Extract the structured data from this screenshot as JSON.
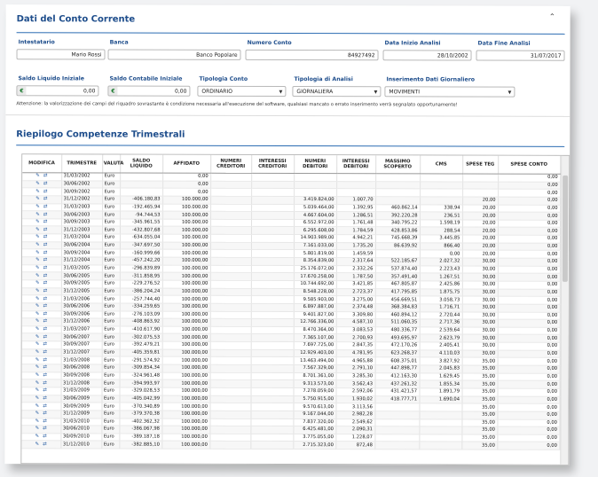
{
  "section1": {
    "title": "Dati del Conto Corrente",
    "collapse_icon": "chevron-up-icon",
    "fields": {
      "intestatario": {
        "label": "Intestatario",
        "value": "Mario Rossi"
      },
      "banca": {
        "label": "Banca",
        "value": "Banco Popolare"
      },
      "numero_conto": {
        "label": "Numero Conto",
        "value": "84927492"
      },
      "data_inizio": {
        "label": "Data Inizio Analisi",
        "value": "28/10/2002"
      },
      "data_fine": {
        "label": "Data Fine Analisi",
        "value": "31/07/2017"
      },
      "saldo_liquido": {
        "label": "Saldo Liquido Iniziale",
        "value": "0,00",
        "prefix": "€"
      },
      "saldo_contabile": {
        "label": "Saldo Contabile Iniziale",
        "value": "0,00",
        "prefix": "€"
      },
      "tipologia_conto": {
        "label": "Tipologia Conto",
        "value": "ORDINARIO"
      },
      "tipologia_analisi": {
        "label": "Tipologia di Analisi",
        "value": "GIORNALIERA"
      },
      "inserimento": {
        "label": "Inserimento Dati Giornaliero",
        "value": "MOVIMENTI"
      }
    },
    "note": "Attenzione: la valorizzazione dei campi del riquadro sovrastante è condizione necessaria all'esecuzione del software, qualsiasi mancato o errato inserimento verrà segnalato opportunamente!"
  },
  "section2": {
    "title": "Riepilogo Competenze Trimestrali",
    "columns": [
      "MODIFICA",
      "TRIMESTRE",
      "VALUTA",
      "SALDO LIQUIDO",
      "AFFIDATO",
      "NUMERI CREDITORI",
      "INTERESSI CREDITORI",
      "NUMERI DEBITORI",
      "INTERESSI DEBITORI",
      "MASSIMO SCOPERTO",
      "CMS",
      "SPESE TEG",
      "SPESE CONTO"
    ],
    "rows": [
      [
        "31/03/2002",
        "Euro",
        "",
        "0,00",
        "",
        "",
        "",
        "",
        "",
        "",
        "",
        "0,00"
      ],
      [
        "30/06/2002",
        "Euro",
        "",
        "0,00",
        "",
        "",
        "",
        "",
        "",
        "",
        "",
        "0,00"
      ],
      [
        "30/09/2002",
        "Euro",
        "",
        "0,00",
        "",
        "",
        "",
        "",
        "",
        "",
        "",
        "0,00"
      ],
      [
        "31/12/2002",
        "Euro",
        "-406.180,83",
        "100.000,00",
        "",
        "",
        "3.419.824,00",
        "1.007,70",
        "",
        "",
        "20,00",
        "0,00"
      ],
      [
        "31/03/2003",
        "Euro",
        "-192.465,94",
        "100.000,00",
        "",
        "",
        "5.039.464,00",
        "1.392,95",
        "460.862,14",
        "338,94",
        "20,00",
        "0,00"
      ],
      [
        "30/06/2003",
        "Euro",
        "-94.744,53",
        "100.000,00",
        "",
        "",
        "4.667.604,00",
        "1.286,51",
        "392.220,28",
        "236,51",
        "20,00",
        "0,00"
      ],
      [
        "30/09/2003",
        "Euro",
        "-345.961,55",
        "100.000,00",
        "",
        "",
        "6.552.972,00",
        "1.761,48",
        "340.795,22",
        "1.598,19",
        "20,00",
        "0,00"
      ],
      [
        "31/12/2003",
        "Euro",
        "-432.807,68",
        "100.000,00",
        "",
        "",
        "6.295.608,00",
        "1.784,59",
        "428.853,86",
        "288,54",
        "20,00",
        "0,00"
      ],
      [
        "31/03/2004",
        "Euro",
        "-634.055,04",
        "100.000,00",
        "",
        "",
        "14.903.989,00",
        "4.942,21",
        "745.668,39",
        "3.445,85",
        "20,00",
        "0,00"
      ],
      [
        "30/06/2004",
        "Euro",
        "-347.697,50",
        "100.000,00",
        "",
        "",
        "7.161.033,00",
        "1.735,20",
        "86.639,92",
        "866,40",
        "20,00",
        "0,00"
      ],
      [
        "30/09/2004",
        "Euro",
        "-160.999,66",
        "100.000,00",
        "",
        "",
        "5.801.819,00",
        "1.459,59",
        "",
        "0,00",
        "20,00",
        "0,00"
      ],
      [
        "31/12/2004",
        "Euro",
        "-457.242,20",
        "100.000,00",
        "",
        "",
        "8.354.839,00",
        "2.317,64",
        "522.185,67",
        "2.027,32",
        "30,00",
        "0,00"
      ],
      [
        "31/03/2005",
        "Euro",
        "-296.839,89",
        "100.000,00",
        "",
        "",
        "25.176.072,00",
        "2.332,26",
        "537.874,40",
        "2.223,43",
        "30,00",
        "0,00"
      ],
      [
        "30/06/2005",
        "Euro",
        "-311.858,95",
        "100.000,00",
        "",
        "",
        "17.670.258,00",
        "1.787,50",
        "357.491,40",
        "1.267,51",
        "30,00",
        "0,00"
      ],
      [
        "30/09/2005",
        "Euro",
        "-229.276,52",
        "100.000,00",
        "",
        "",
        "10.744.692,00",
        "3.421,85",
        "467.805,87",
        "2.425,86",
        "30,00",
        "0,00"
      ],
      [
        "31/12/2005",
        "Euro",
        "-386.204,24",
        "100.000,00",
        "",
        "",
        "8.548.228,00",
        "2.723,37",
        "417.795,85",
        "1.875,75",
        "30,00",
        "0,00"
      ],
      [
        "31/03/2006",
        "Euro",
        "-257.744,40",
        "100.000,00",
        "",
        "",
        "9.585.903,00",
        "3.275,00",
        "456.669,51",
        "3.058,73",
        "30,00",
        "0,00"
      ],
      [
        "30/06/2006",
        "Euro",
        "-334.259,65",
        "100.000,00",
        "",
        "",
        "6.897.887,00",
        "2.374,48",
        "368.384,83",
        "1.716,71",
        "30,00",
        "0,00"
      ],
      [
        "30/09/2006",
        "Euro",
        "-276.103,09",
        "100.000,00",
        "",
        "",
        "9.401.827,00",
        "3.309,80",
        "460.894,12",
        "2.720,44",
        "30,00",
        "0,00"
      ],
      [
        "31/12/2006",
        "Euro",
        "-408.863,92",
        "100.000,00",
        "",
        "",
        "12.766.336,00",
        "4.587,10",
        "511.060,35",
        "2.717,36",
        "30,00",
        "0,00"
      ],
      [
        "31/03/2007",
        "Euro",
        "-410.617,90",
        "100.000,00",
        "",
        "",
        "8.470.364,00",
        "3.083,53",
        "480.336,77",
        "2.539,64",
        "30,00",
        "0,00"
      ],
      [
        "30/06/2007",
        "Euro",
        "-302.075,53",
        "100.000,00",
        "",
        "",
        "7.365.107,00",
        "2.700,93",
        "493.695,97",
        "2.623,79",
        "30,00",
        "0,00"
      ],
      [
        "30/09/2007",
        "Euro",
        "-392.479,21",
        "100.000,00",
        "",
        "",
        "7.697.725,00",
        "2.847,35",
        "472.170,26",
        "2.405,41",
        "30,00",
        "0,00"
      ],
      [
        "31/12/2007",
        "Euro",
        "-405.359,81",
        "100.000,00",
        "",
        "",
        "12.929.403,00",
        "4.781,95",
        "623.268,37",
        "4.110,03",
        "30,00",
        "0,00"
      ],
      [
        "31/03/2008",
        "Euro",
        "-291.574,92",
        "100.000,00",
        "",
        "",
        "13.463.494,00",
        "4.965,88",
        "608.375,01",
        "3.827,92",
        "35,00",
        "0,00"
      ],
      [
        "30/06/2008",
        "Euro",
        "-309.854,34",
        "100.000,00",
        "",
        "",
        "7.567.329,00",
        "2.791,10",
        "447.898,77",
        "2.045,83",
        "35,00",
        "0,00"
      ],
      [
        "30/09/2008",
        "Euro",
        "-324.961,48",
        "100.000,00",
        "",
        "",
        "8.701.361,00",
        "3.285,30",
        "412.163,30",
        "1.629,45",
        "35,00",
        "0,00"
      ],
      [
        "31/12/2008",
        "Euro",
        "-394.993,97",
        "100.000,00",
        "",
        "",
        "9.313.573,00",
        "3.562,43",
        "437.261,32",
        "1.855,34",
        "35,00",
        "0,00"
      ],
      [
        "31/03/2009",
        "Euro",
        "-329.028,53",
        "100.000,00",
        "",
        "",
        "7.278.059,00",
        "2.592,06",
        "431.421,57",
        "1.891,79",
        "35,00",
        "0,00"
      ],
      [
        "30/06/2009",
        "Euro",
        "-405.042,99",
        "100.000,00",
        "",
        "",
        "5.750.915,00",
        "1.930,02",
        "418.777,71",
        "1.690,04",
        "35,00",
        "0,00"
      ],
      [
        "30/09/2009",
        "Euro",
        "-370.340,89",
        "100.000,00",
        "",
        "",
        "9.570.613,00",
        "3.113,56",
        "",
        "",
        "35,00",
        "0,00"
      ],
      [
        "31/12/2009",
        "Euro",
        "-379.370,38",
        "100.000,00",
        "",
        "",
        "9.167.044,00",
        "2.982,28",
        "",
        "",
        "35,00",
        "0,00"
      ],
      [
        "31/03/2010",
        "Euro",
        "-402.362,32",
        "100.000,00",
        "",
        "",
        "7.837.320,00",
        "2.549,62",
        "",
        "",
        "35,00",
        "0,00"
      ],
      [
        "30/06/2010",
        "Euro",
        "-386.067,98",
        "100.000,00",
        "",
        "",
        "6.425.481,00",
        "2.090,31",
        "",
        "",
        "35,00",
        "0,00"
      ],
      [
        "30/09/2010",
        "Euro",
        "-389.187,18",
        "100.000,00",
        "",
        "",
        "3.775.055,00",
        "1.228,07",
        "",
        "",
        "35,00",
        "0,00"
      ],
      [
        "31/12/2010",
        "Euro",
        "-382.885,10",
        "100.000,00",
        "",
        "",
        "2.715.323,00",
        "872,48",
        "",
        "",
        "35,00",
        "0,00"
      ]
    ]
  }
}
